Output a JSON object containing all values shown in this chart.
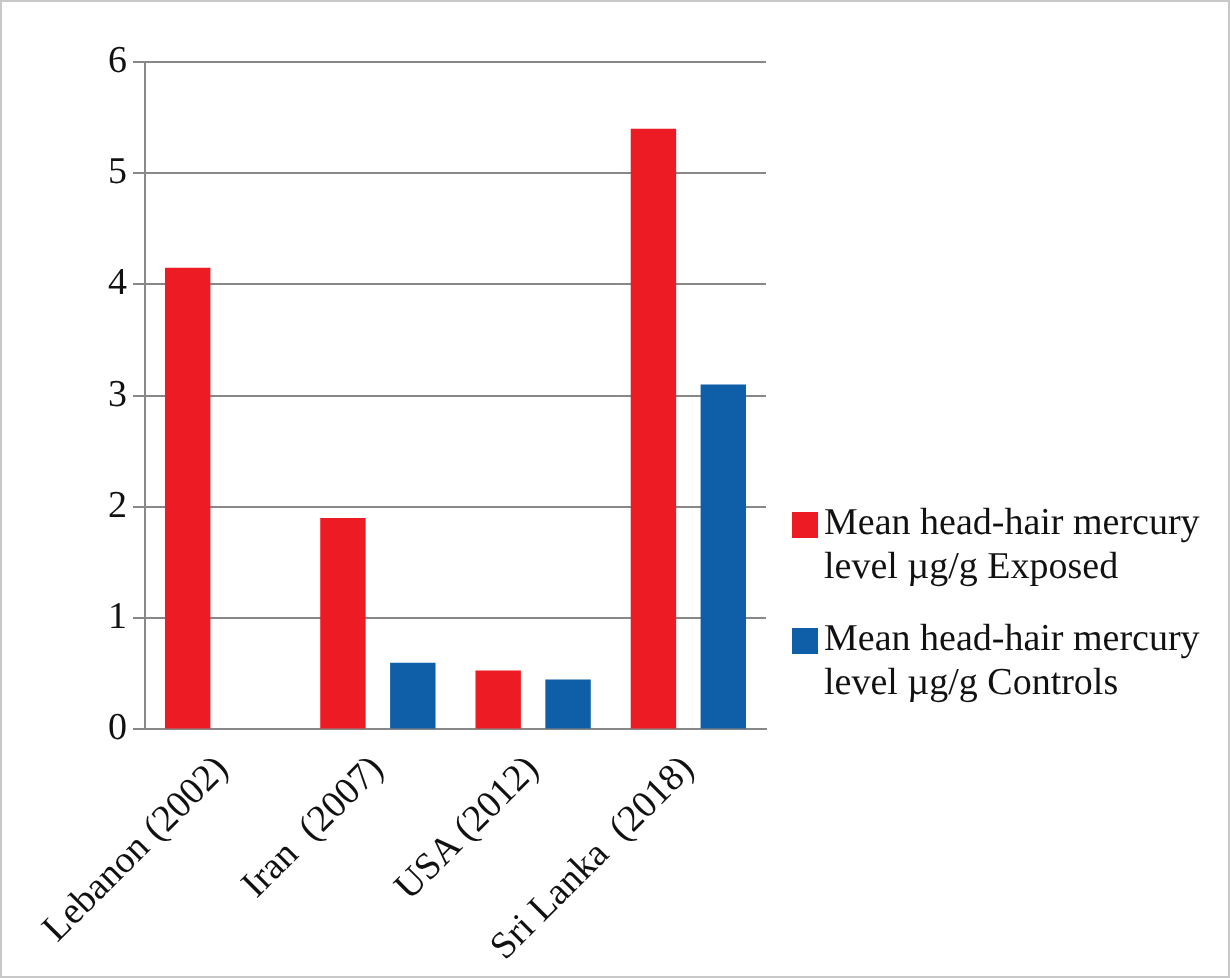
{
  "chart_data": {
    "type": "bar",
    "categories": [
      "Lebanon (2002)",
      "Iran  (2007)",
      "USA (2012)",
      "Sri Lanka  (2018)"
    ],
    "series": [
      {
        "name": "Mean head-hair mercury level µg/g Exposed",
        "color": "#ed1c24",
        "values": [
          4.15,
          1.9,
          0.53,
          5.4
        ]
      },
      {
        "name": "Mean head-hair mercury level µg/g Controls",
        "color": "#0f5fa8",
        "values": [
          null,
          0.6,
          0.45,
          3.1
        ]
      }
    ],
    "ylim": [
      0,
      6
    ],
    "yticks": [
      0,
      1,
      2,
      3,
      4,
      5,
      6
    ],
    "grid": "y",
    "legend": "right"
  }
}
